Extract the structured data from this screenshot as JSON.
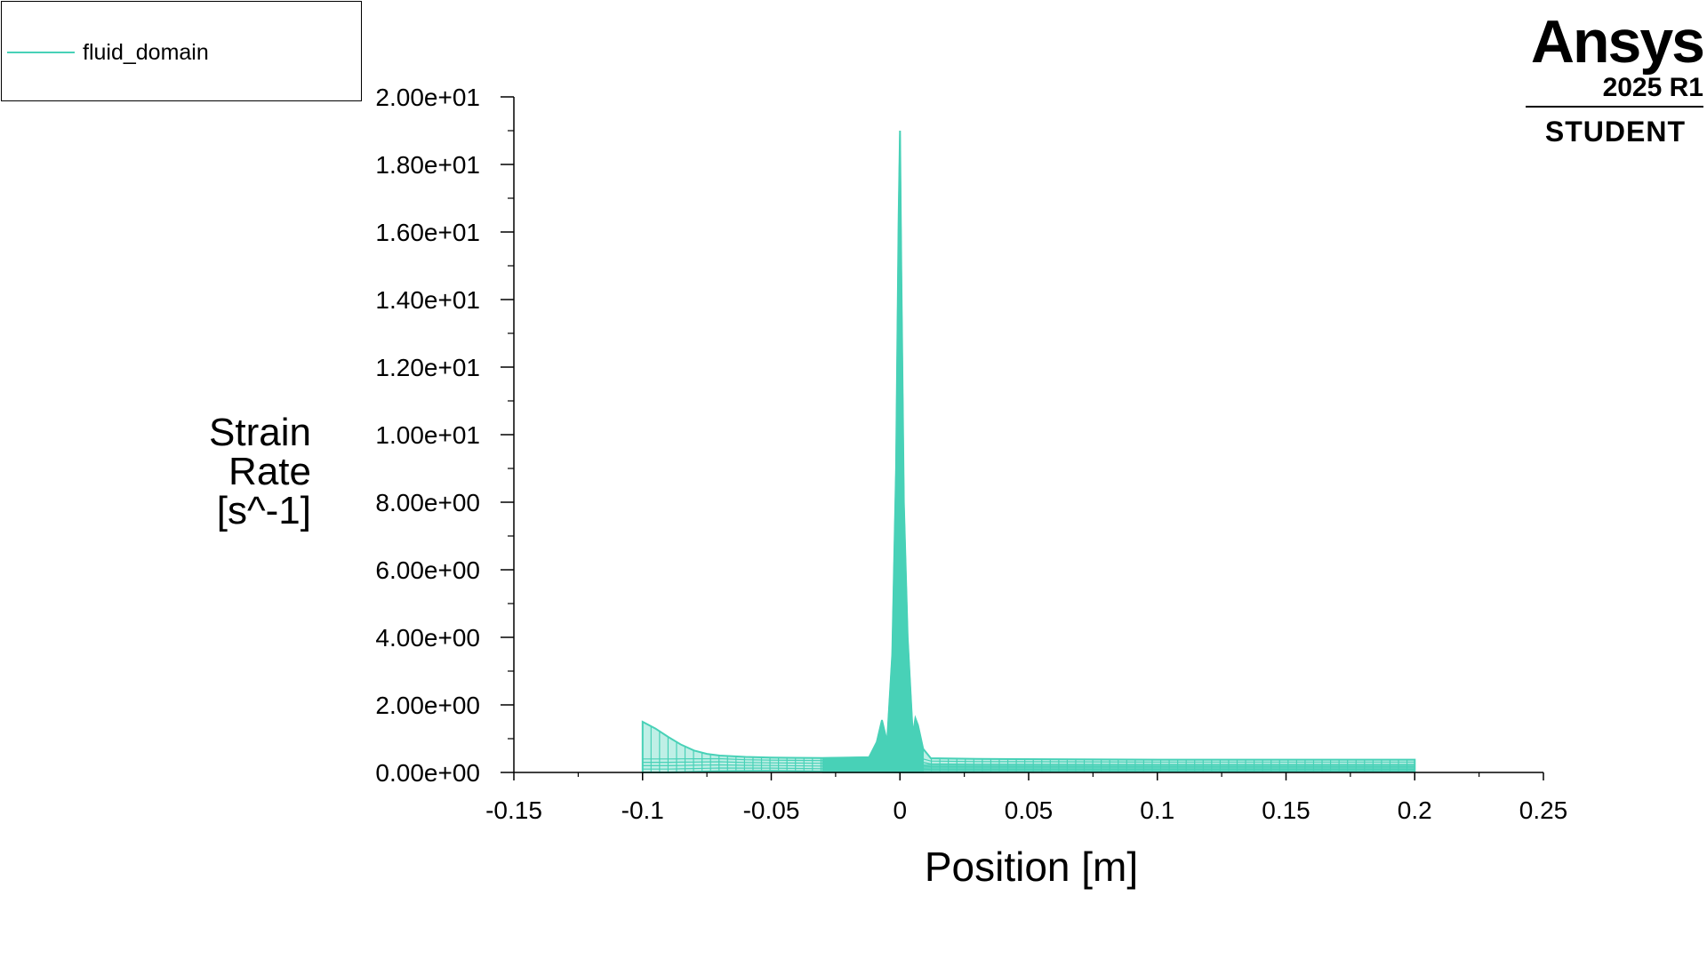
{
  "legend": {
    "series_label": "fluid_domain"
  },
  "logo": {
    "brand": "Ansys",
    "version": "2025 R1",
    "edition": "STUDENT"
  },
  "colors": {
    "series": "#48d1b7",
    "axis": "#000000"
  },
  "chart_data": {
    "type": "line",
    "title": "",
    "xlabel": "Position [m]",
    "ylabel_lines": [
      "Strain",
      "Rate",
      "[s^-1]"
    ],
    "xlim": [
      -0.15,
      0.25
    ],
    "ylim": [
      0,
      20
    ],
    "x_ticks": [
      "-0.15",
      "-0.1",
      "-0.05",
      "0",
      "0.05",
      "0.1",
      "0.15",
      "0.2",
      "0.25"
    ],
    "x_tick_values": [
      -0.15,
      -0.1,
      -0.05,
      0,
      0.05,
      0.1,
      0.15,
      0.2,
      0.25
    ],
    "y_ticks": [
      "0.00e+00",
      "2.00e+00",
      "4.00e+00",
      "6.00e+00",
      "8.00e+00",
      "1.00e+01",
      "1.20e+01",
      "1.40e+01",
      "1.60e+01",
      "1.80e+01",
      "2.00e+01"
    ],
    "y_tick_values": [
      0,
      2,
      4,
      6,
      8,
      10,
      12,
      14,
      16,
      18,
      20
    ],
    "legend_position": "top-left",
    "grid": false,
    "series": [
      {
        "name": "fluid_domain",
        "upper_envelope": {
          "x": [
            -0.1,
            -0.095,
            -0.09,
            -0.085,
            -0.08,
            -0.075,
            -0.07,
            -0.06,
            -0.05,
            -0.03,
            -0.012,
            -0.009,
            -0.007,
            -0.005,
            -0.003,
            -0.0015,
            -0.0005,
            0,
            0.0005,
            0.0015,
            0.003,
            0.005,
            0.006,
            0.007,
            0.009,
            0.012,
            0.03,
            0.1,
            0.2
          ],
          "y": [
            1.5,
            1.3,
            1.05,
            0.82,
            0.65,
            0.55,
            0.5,
            0.46,
            0.44,
            0.43,
            0.45,
            0.9,
            1.55,
            0.9,
            3.5,
            9.0,
            16.5,
            19.0,
            15.0,
            8.0,
            4.0,
            1.1,
            1.6,
            1.4,
            0.7,
            0.42,
            0.4,
            0.38,
            0.38
          ]
        },
        "lower_envelope": {
          "x": [
            -0.1,
            -0.09,
            -0.08,
            -0.07,
            -0.05,
            0,
            0.1,
            0.2
          ],
          "y": [
            0.0,
            0.0,
            0.02,
            0.04,
            0.05,
            0.0,
            0.02,
            0.02
          ]
        }
      }
    ]
  }
}
